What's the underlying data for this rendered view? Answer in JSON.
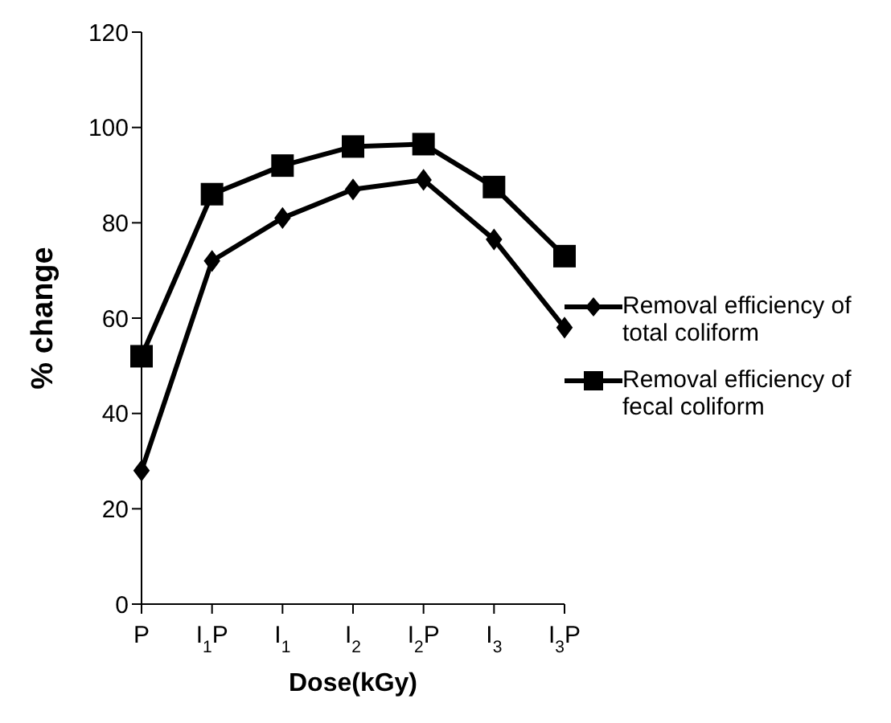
{
  "chart_data": {
    "type": "line",
    "xlabel": "Dose(kGy)",
    "ylabel": "% change",
    "categories": [
      "P",
      "I$_{1}$P",
      "I$_{1}$",
      "I$_{2}$",
      "I$_{2}$P",
      "I$_{3}$",
      "I$_{3}$P"
    ],
    "series": [
      {
        "name": "Removal efficiency of total coliform",
        "color": "#000000",
        "marker": "diamond",
        "values": [
          28,
          72,
          81,
          87,
          89,
          76.5,
          58
        ]
      },
      {
        "name": "Removal efficiency of fecal coliform",
        "color": "#000000",
        "marker": "square",
        "values": [
          52,
          86,
          92,
          96,
          96.5,
          87.5,
          73
        ]
      }
    ],
    "ylim": [
      0,
      120
    ],
    "yticks": [
      0,
      20,
      40,
      60,
      80,
      100,
      120
    ],
    "grid": false,
    "legend": "right"
  }
}
